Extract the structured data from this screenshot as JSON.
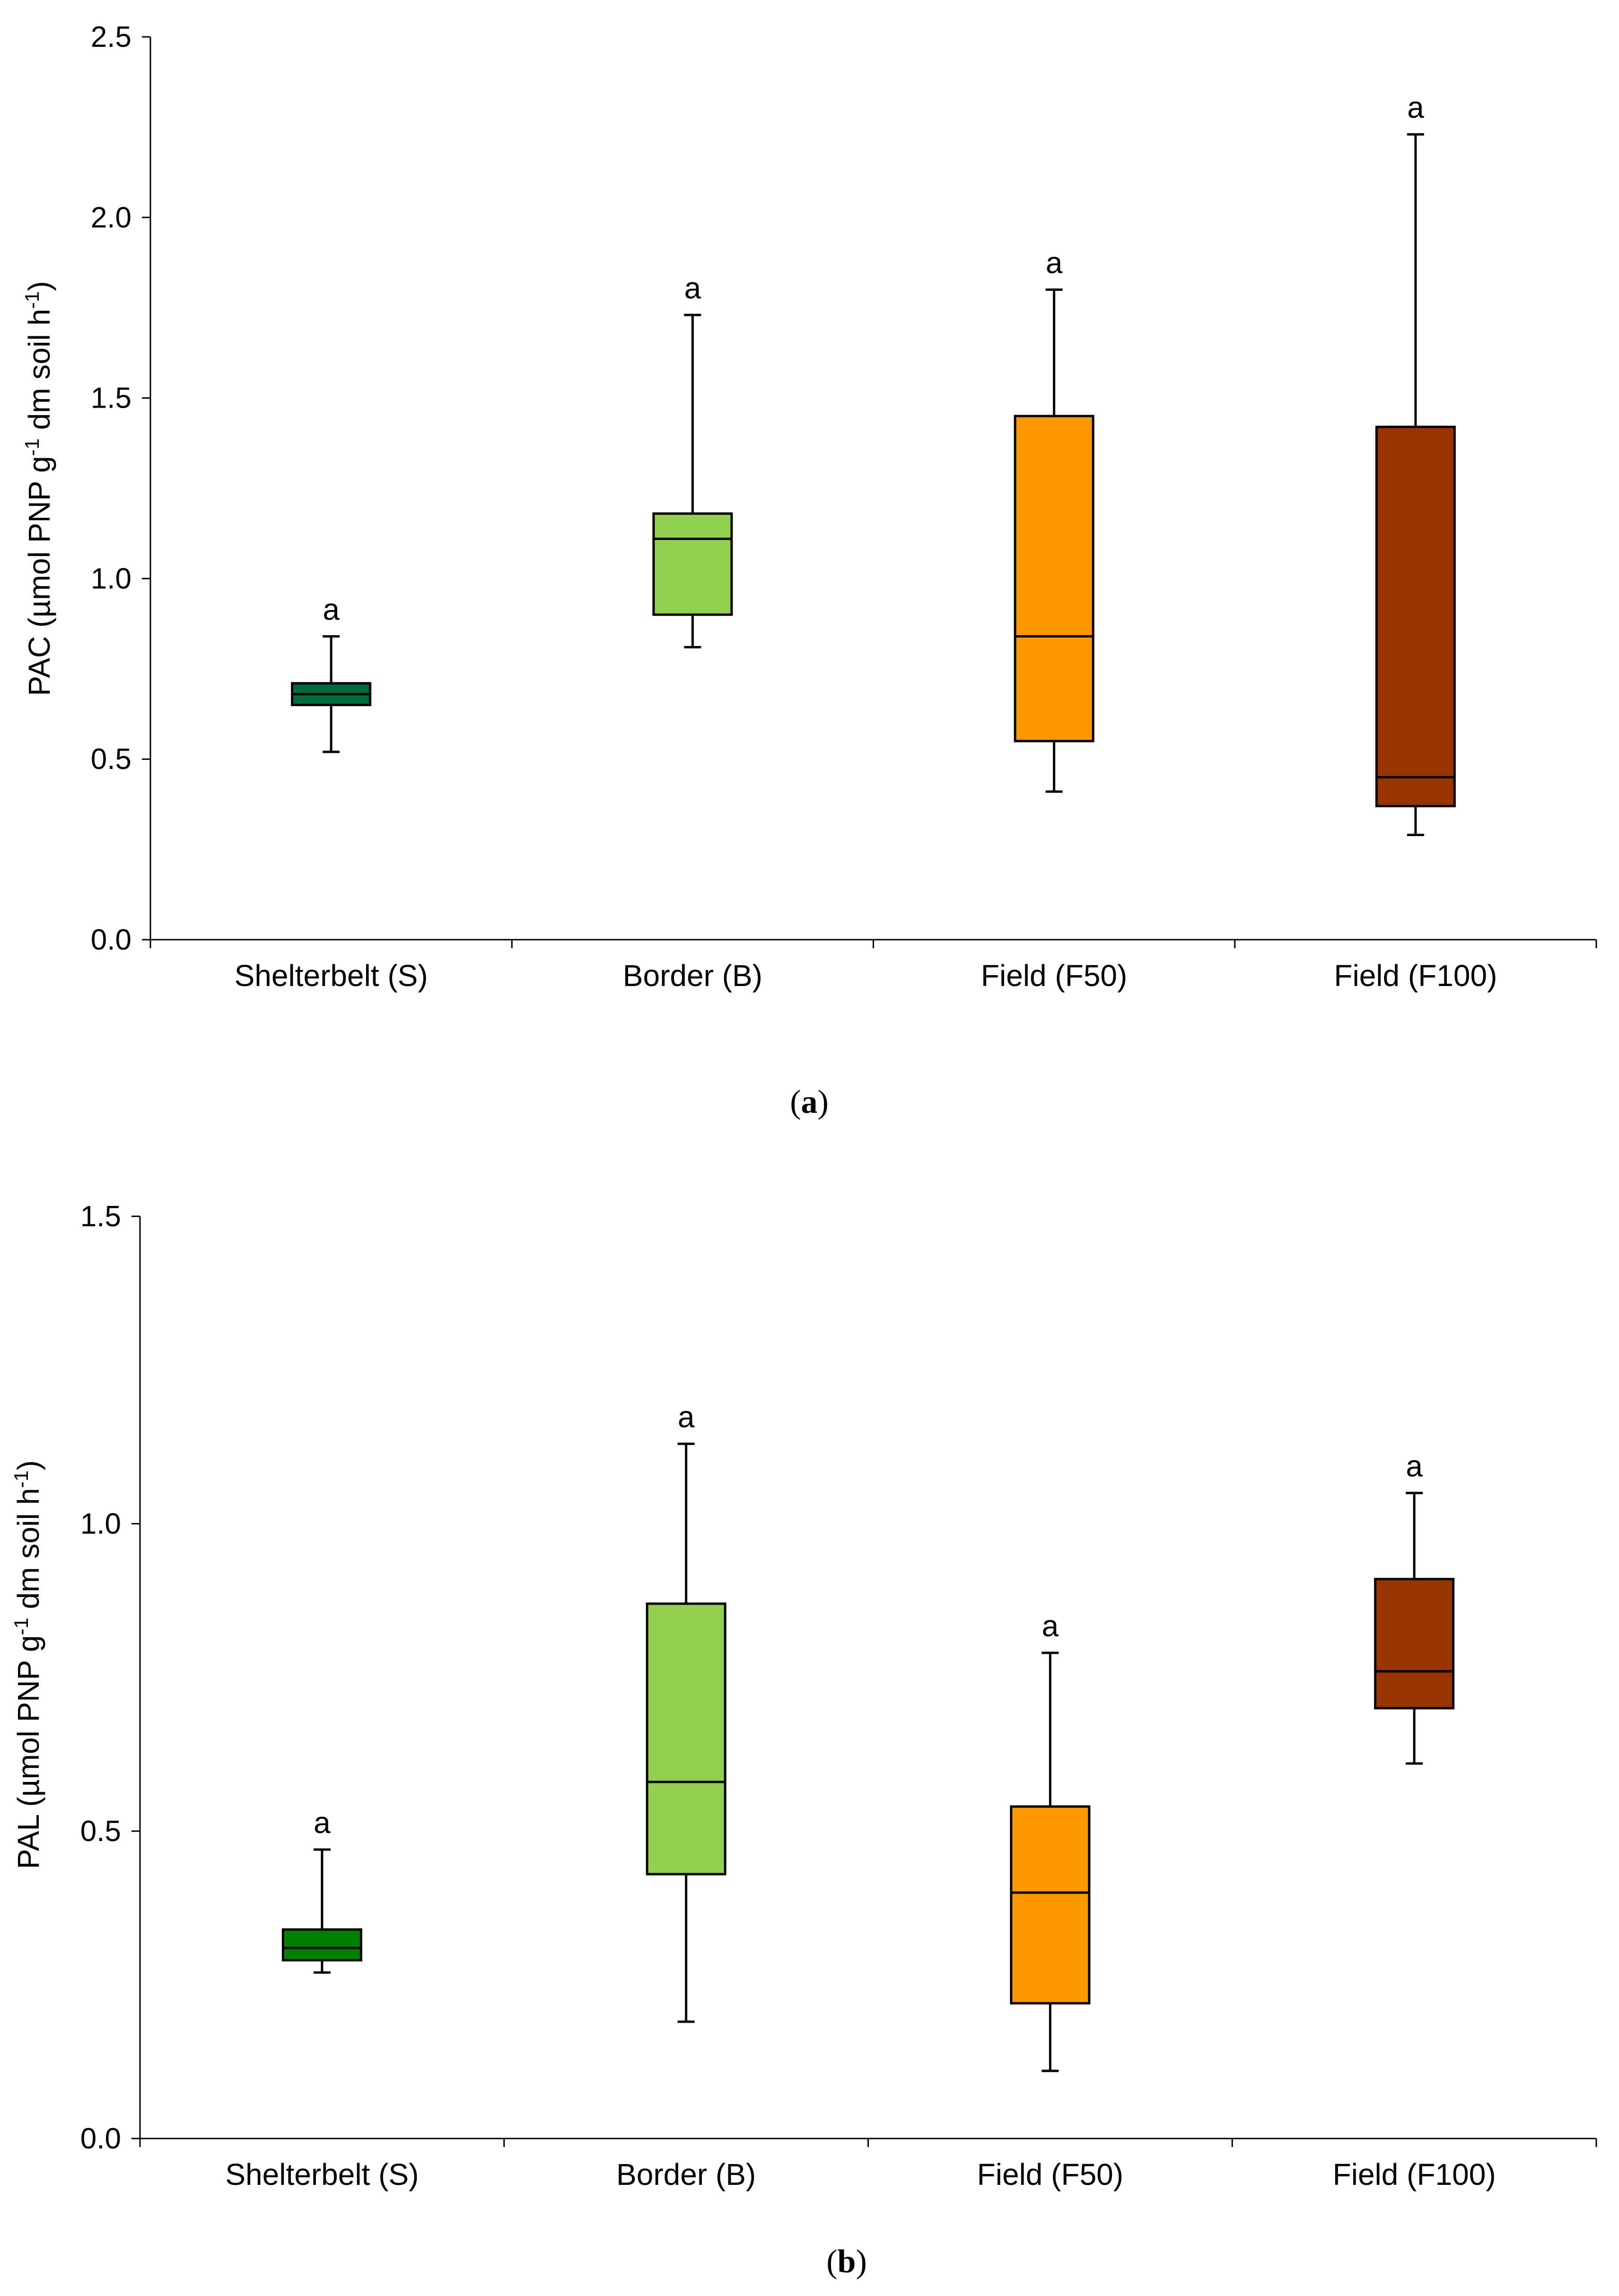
{
  "chart_data": [
    {
      "panel": "a",
      "type": "boxplot",
      "ylabel": "PAC (µmol PNP g",
      "ylabel_sup1": "-1",
      "ylabel_mid": " dm soil h",
      "ylabel_sup2": "-1",
      "ylabel_end": ")",
      "ylim": [
        0.0,
        2.5
      ],
      "yticks": [
        0.0,
        0.5,
        1.0,
        1.5,
        2.0,
        2.5
      ],
      "ytick_labels": [
        "0.0",
        "0.5",
        "1.0",
        "1.5",
        "2.0",
        "2.5"
      ],
      "categories": [
        "Shelterbelt (S)",
        "Border (B)",
        "Field (F50)",
        "Field (F100)"
      ],
      "boxes": [
        {
          "min": 0.52,
          "q1": 0.65,
          "median": 0.68,
          "q3": 0.71,
          "max": 0.84,
          "letter": "a",
          "color": "#006b3c"
        },
        {
          "min": 0.81,
          "q1": 0.9,
          "median": 1.11,
          "q3": 1.18,
          "max": 1.73,
          "letter": "a",
          "color": "#92d050"
        },
        {
          "min": 0.41,
          "q1": 0.55,
          "median": 0.84,
          "q3": 1.45,
          "max": 1.8,
          "letter": "a",
          "color": "#ff9900"
        },
        {
          "min": 0.29,
          "q1": 0.37,
          "median": 0.45,
          "q3": 1.42,
          "max": 2.23,
          "letter": "a",
          "color": "#993300"
        }
      ]
    },
    {
      "panel": "b",
      "type": "boxplot",
      "ylabel": "PAL (µmol PNP g",
      "ylabel_sup1": "-1",
      "ylabel_mid": " dm soil h",
      "ylabel_sup2": "-1",
      "ylabel_end": ")",
      "ylim": [
        0.0,
        1.5
      ],
      "yticks": [
        0.0,
        0.5,
        1.0,
        1.5
      ],
      "ytick_labels": [
        "0.0",
        "0.5",
        "1.0",
        "1.5"
      ],
      "categories": [
        "Shelterbelt (S)",
        "Border (B)",
        "Field (F50)",
        "Field (F100)"
      ],
      "boxes": [
        {
          "min": 0.27,
          "q1": 0.29,
          "median": 0.31,
          "q3": 0.34,
          "max": 0.47,
          "letter": "a",
          "color": "#008000"
        },
        {
          "min": 0.19,
          "q1": 0.43,
          "median": 0.58,
          "q3": 0.87,
          "max": 1.13,
          "letter": "a",
          "color": "#92d050"
        },
        {
          "min": 0.11,
          "q1": 0.22,
          "median": 0.4,
          "q3": 0.54,
          "max": 0.79,
          "letter": "a",
          "color": "#ff9900"
        },
        {
          "min": 0.61,
          "q1": 0.7,
          "median": 0.76,
          "q3": 0.91,
          "max": 1.05,
          "letter": "a",
          "color": "#993300"
        }
      ]
    }
  ],
  "captions": [
    "a",
    "b"
  ]
}
